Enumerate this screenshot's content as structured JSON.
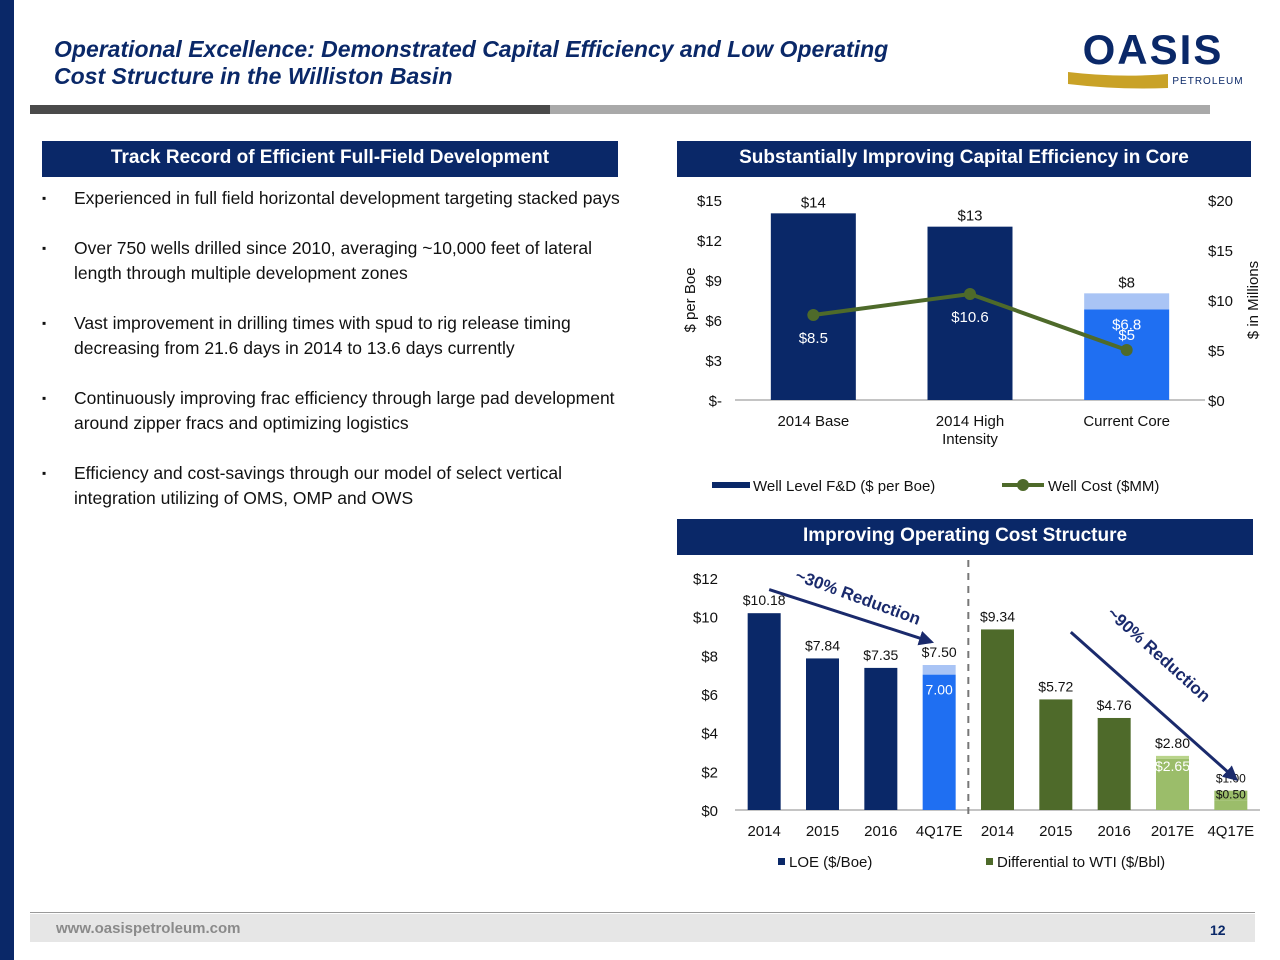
{
  "header": {
    "title_line1": "Operational Excellence: Demonstrated Capital Efficiency and Low Operating",
    "title_line2": "Cost Structure in the Williston Basin",
    "logo_text": "OASIS",
    "logo_subtext": "PETROLEUM"
  },
  "left_panel": {
    "banner": "Track Record of Efficient Full-Field Development",
    "bullets": [
      "Experienced in full field horizontal development targeting stacked pays",
      "Over 750 wells drilled since 2010, averaging ~10,000 feet of lateral length through multiple development zones",
      "Vast improvement in drilling times with spud to rig release timing decreasing from 21.6 days in 2014 to 13.6 days currently",
      "Continuously improving frac efficiency through large pad development around zipper fracs and optimizing logistics",
      "Efficiency and cost-savings through our model of select vertical integration utilizing of OMS, OMP and OWS"
    ],
    "bullet_marker": "▪"
  },
  "colors": {
    "navy": "#0a2868",
    "bright_blue": "#1f6ff2",
    "light_blue": "#a9c4f5",
    "olive": "#4e6a2a",
    "light_olive": "#9bbd6a",
    "gray": "#a9a9a9"
  },
  "chart_data": [
    {
      "type": "bar",
      "banner": "Substantially Improving Capital Efficiency in Core",
      "categories": [
        "2014 Base",
        "2014 High Intensity",
        "Current Core"
      ],
      "series": [
        {
          "name": "Well Level F&D ($ per Boe)",
          "values": [
            14,
            13,
            6.8
          ],
          "extra_segment": [
            0,
            0,
            1.2
          ],
          "labels": [
            "$14",
            "$13",
            "$8"
          ],
          "segment_labels": [
            "",
            "",
            "$6.8"
          ]
        },
        {
          "name": "Well Cost ($MM)",
          "axis": "right",
          "values": [
            8.5,
            10.6,
            5
          ],
          "labels": [
            "$8.5",
            "$10.6",
            "$5"
          ]
        }
      ],
      "ylabel": "$ per Boe",
      "ylabel_right": "$ in Millions",
      "ylim": [
        0,
        15
      ],
      "ylim_right": [
        0,
        20
      ],
      "y_ticks": [
        "$-",
        "$3",
        "$6",
        "$9",
        "$12",
        "$15"
      ],
      "y_ticks_right": [
        "$0",
        "$5",
        "$10",
        "$15",
        "$20"
      ],
      "legend": "bottom"
    },
    {
      "type": "bar",
      "banner": "Improving Operating Cost Structure",
      "categories": [
        "2014",
        "2015",
        "2016",
        "4Q17E",
        "2014",
        "2015",
        "2016",
        "2017E",
        "4Q17E"
      ],
      "series": [
        {
          "name": "LOE ($/Boe)",
          "values": [
            10.18,
            7.84,
            7.35,
            7.0,
            null,
            null,
            null,
            null,
            null
          ],
          "labels": [
            "$10.18",
            "$7.84",
            "$7.35",
            "7.00",
            "",
            "",
            "",
            "",
            ""
          ]
        },
        {
          "name": "Differential to WTI ($/Bbl)",
          "values": [
            null,
            null,
            null,
            null,
            9.34,
            5.72,
            4.76,
            2.65,
            0.5
          ],
          "labels": [
            "",
            "",
            "",
            "",
            "$9.34",
            "$5.72",
            "$4.76",
            "$2.65",
            "$0.50"
          ]
        }
      ],
      "top_labels": [
        {
          "category_index": 3,
          "value": 7.5,
          "label": "$7.50"
        },
        {
          "category_index": 7,
          "value": 2.8,
          "label": "$2.80"
        },
        {
          "category_index": 8,
          "value": 1.0,
          "label": "$1.00"
        }
      ],
      "annotations": [
        "~30% Reduction",
        "~90% Reduction"
      ],
      "ylim": [
        0,
        12
      ],
      "y_ticks": [
        "$0",
        "$2",
        "$4",
        "$6",
        "$8",
        "$10",
        "$12"
      ],
      "legend": "bottom"
    }
  ],
  "footer": {
    "url": "www.oasispetroleum.com",
    "page": "12"
  }
}
